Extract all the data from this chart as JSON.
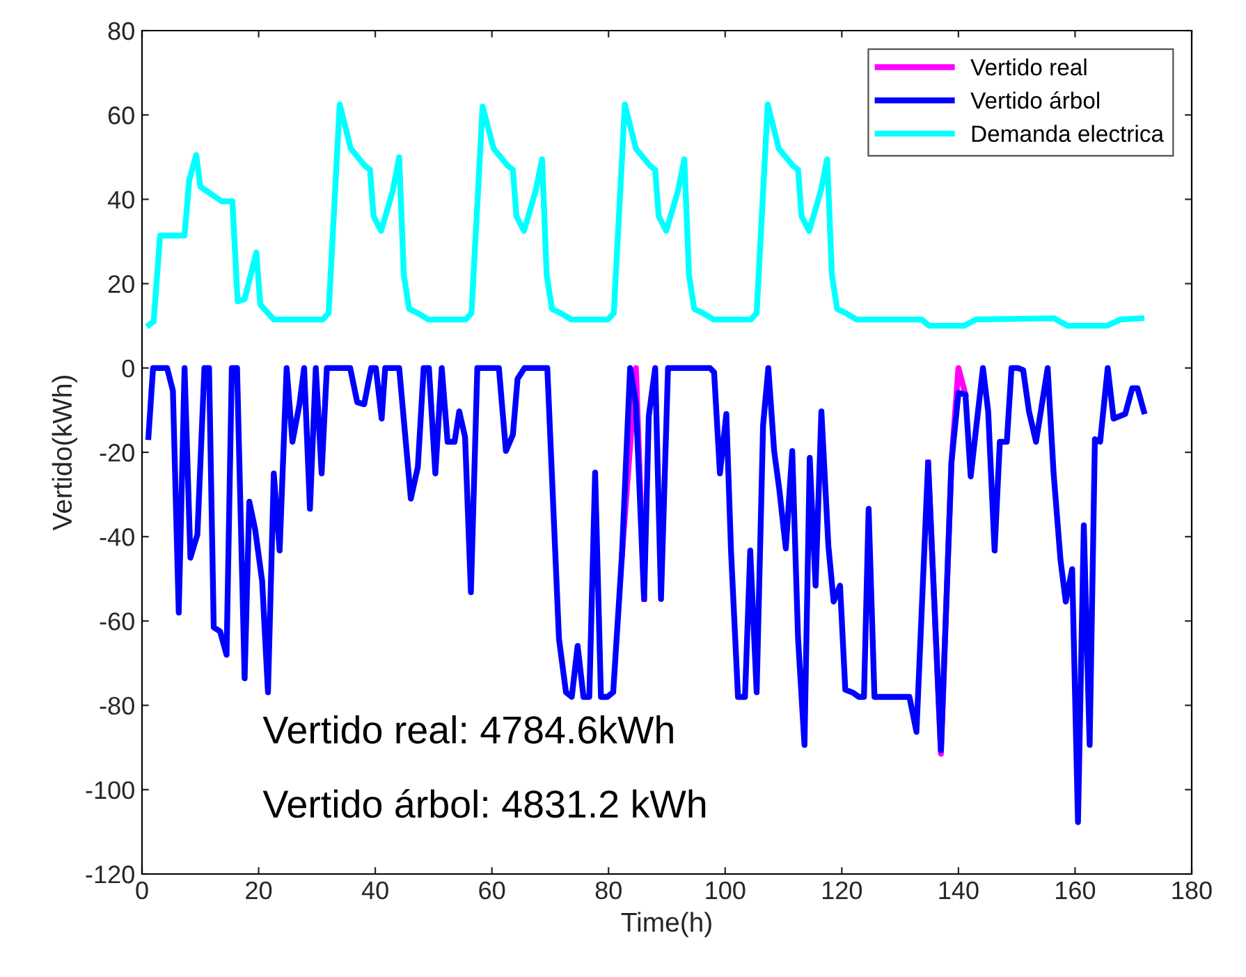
{
  "chart_data": {
    "type": "line",
    "xlabel": "Time(h)",
    "ylabel": "Vertido(kWh)",
    "xlim": [
      0,
      180
    ],
    "ylim": [
      -120,
      80
    ],
    "xticks": [
      0,
      20,
      40,
      60,
      80,
      100,
      120,
      140,
      160,
      180
    ],
    "yticks": [
      -120,
      -100,
      -80,
      -60,
      -40,
      -20,
      0,
      20,
      40,
      60,
      80
    ],
    "grid": false,
    "legend": "top right",
    "marker": "none",
    "line_style": "solid",
    "annotations": [
      "Vertido real: 4784.6kWh",
      "Vertido árbol: 4831.2 kWh"
    ],
    "series": [
      {
        "name": "Vertido real",
        "color": "#ff00ff",
        "x": [
          82.3,
          84.7,
          86.1,
          110.0,
          134.8,
          137.0,
          138.8,
          140.0,
          141.2
        ],
        "values": [
          -44.4,
          0,
          -54.8,
          null,
          -22.4,
          -91.5,
          -22.4,
          0,
          -6.3
        ]
      },
      {
        "name": "Vertido árbol",
        "color": "#0000ff",
        "x": [
          1.1,
          1.9,
          4.3,
          5.3,
          6.3,
          7.3,
          8.3,
          9.5,
          10.7,
          11.5,
          12.3,
          13.4,
          14.5,
          15.4,
          16.3,
          17.6,
          18.4,
          19.4,
          20.6,
          21.6,
          22.6,
          23.6,
          24.8,
          25.8,
          27.0,
          27.8,
          28.8,
          29.8,
          30.8,
          31.7,
          35.7,
          36.9,
          38.1,
          39.3,
          40.1,
          41.1,
          41.7,
          44.1,
          46.1,
          47.3,
          48.3,
          49.2,
          50.3,
          51.4,
          52.4,
          53.6,
          54.4,
          55.4,
          56.4,
          57.5,
          61.2,
          62.4,
          63.6,
          64.4,
          65.6,
          69.5,
          71.5,
          72.7,
          73.7,
          74.7,
          75.7,
          76.7,
          77.7,
          78.7,
          79.8,
          80.8,
          82.3,
          83.7,
          84.7,
          86.1,
          86.9,
          88.0,
          89.0,
          90.2,
          97.4,
          98.1,
          99.1,
          100.2,
          101.0,
          102.2,
          103.4,
          104.3,
          105.4,
          106.5,
          107.4,
          108.4,
          109.3,
          110.4,
          111.5,
          112.5,
          113.6,
          114.5,
          115.5,
          116.5,
          117.7,
          118.6,
          119.7,
          120.6,
          121.9,
          122.9,
          123.8,
          124.6,
          125.6,
          131.6,
          132.8,
          134.8,
          137.0,
          138.8,
          140.0,
          141.2,
          142.1,
          144.2,
          145.1,
          146.2,
          147.1,
          148.3,
          149.1,
          150.2,
          151.1,
          152.1,
          153.3,
          155.3,
          156.3,
          157.5,
          158.4,
          159.5,
          160.5,
          161.5,
          162.5,
          163.4,
          164.3,
          165.6,
          166.6,
          168.6,
          169.8,
          170.7,
          171.8
        ],
        "values": [
          -16.4,
          0,
          0,
          -5.4,
          -58,
          0,
          -45,
          -39.5,
          0,
          0,
          -61.5,
          -62.5,
          -68,
          0,
          0,
          -73.6,
          -31.7,
          -38.3,
          -50.5,
          -76.9,
          -25,
          -43.3,
          0,
          -17.5,
          -8.6,
          0,
          -33.4,
          0,
          -25,
          0,
          0,
          -8.1,
          -8.6,
          0,
          0,
          -12,
          0,
          0,
          -31,
          -23.5,
          0,
          0,
          -25,
          0,
          -17.5,
          -17.5,
          -10.3,
          -16.4,
          -53.2,
          0,
          0,
          -19.7,
          -15.8,
          -2.6,
          0,
          0,
          -64.2,
          -76.9,
          -78,
          -65.9,
          -78,
          -78,
          -24.8,
          -78,
          -78,
          -76.9,
          -44.4,
          0,
          -8.6,
          -54.8,
          -11.4,
          0,
          -54.8,
          0,
          0,
          -1,
          -25,
          -10.9,
          -43.3,
          -78,
          -78,
          -43.3,
          -76.9,
          -13.6,
          0,
          -19.7,
          -29,
          -42.8,
          -19.7,
          -64.2,
          -89.4,
          -21.3,
          -51.6,
          -10.3,
          -42.2,
          -55.4,
          -51.6,
          -76.3,
          -77,
          -78,
          -78,
          -33.4,
          -78,
          -78,
          -86.3,
          -22.4,
          -90.7,
          -22.4,
          -5.9,
          -6.3,
          -25.7,
          0,
          -10.3,
          -43.3,
          -17.5,
          -17.5,
          0,
          0,
          -0.5,
          -10.3,
          -17.5,
          0,
          -24.6,
          -45.5,
          -55.4,
          -47.7,
          -107.7,
          -37.3,
          -89.4,
          -16.9,
          -17.5,
          0,
          -12,
          -10.9,
          -4.8,
          -4.8,
          -10.3
        ]
      },
      {
        "name": "Demanda electrica",
        "color": "#00ffff",
        "x": [
          1.2,
          2.0,
          3.1,
          7.3,
          8.1,
          9.3,
          10.0,
          13.7,
          15.5,
          16.4,
          17.6,
          19.6,
          20.3,
          22.6,
          31.0,
          32.0,
          33.9,
          35.8,
          38.2,
          39.1,
          39.7,
          41.0,
          43.0,
          44.1,
          44.9,
          45.8,
          47.3,
          49.1,
          55.5,
          56.5,
          58.4,
          60.3,
          62.7,
          63.6,
          64.2,
          65.5,
          67.5,
          68.6,
          69.4,
          70.3,
          71.8,
          73.6,
          79.9,
          80.9,
          82.8,
          84.7,
          87.1,
          88.0,
          88.6,
          89.9,
          91.9,
          93.0,
          93.8,
          94.7,
          96.2,
          98.0,
          104.4,
          105.4,
          107.3,
          109.2,
          111.6,
          112.5,
          113.1,
          114.4,
          116.4,
          117.5,
          118.3,
          119.2,
          120.7,
          122.5,
          133.7,
          135.0,
          141.0,
          143.0,
          156.4,
          158.7,
          165.4,
          167.8,
          171.4
        ],
        "values": [
          10.2,
          11,
          31.4,
          31.4,
          44.6,
          50.5,
          43,
          39.5,
          39.5,
          15.8,
          16.3,
          27.4,
          15,
          11.5,
          11.5,
          13,
          62.5,
          52,
          48,
          47,
          36,
          32.5,
          42,
          50,
          22,
          14,
          13,
          11.5,
          11.5,
          13,
          62,
          52,
          48,
          47,
          36,
          32.5,
          42,
          49.5,
          22,
          14,
          13,
          11.5,
          11.5,
          13,
          62.5,
          52,
          48,
          47,
          36,
          32.5,
          42,
          49.5,
          22,
          14,
          13,
          11.5,
          11.5,
          13,
          62.5,
          52,
          48,
          47,
          36,
          32.5,
          42,
          49.5,
          22,
          14,
          13,
          11.5,
          11.5,
          10,
          10,
          11.5,
          11.8,
          10,
          10,
          11.5,
          11.8
        ]
      }
    ]
  }
}
